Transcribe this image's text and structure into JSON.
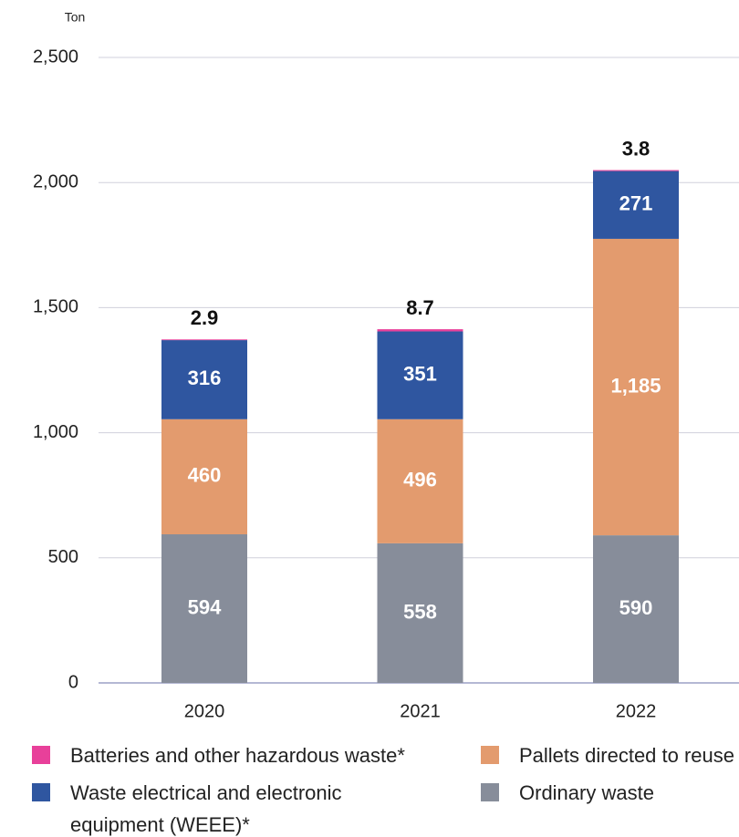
{
  "chart_data": {
    "type": "stacked_bar",
    "y_label": "Ton",
    "categories": [
      "2020",
      "2021",
      "2022"
    ],
    "series": [
      {
        "name": "Ordinary waste",
        "color": "#878d9a",
        "values": [
          594,
          558,
          590
        ]
      },
      {
        "name": "Pallets directed to reuse",
        "color": "#e39b6e",
        "values": [
          460,
          496,
          1185
        ],
        "value_labels": [
          "460",
          "496",
          "1,185"
        ]
      },
      {
        "name": "Waste electrical and electronic equipment (WEEE)*",
        "color": "#2f56a0",
        "values": [
          316,
          351,
          271
        ]
      },
      {
        "name": "Batteries and other hazardous waste*",
        "color": "#e8409a",
        "values": [
          2.9,
          8.7,
          3.8
        ]
      }
    ],
    "ylim": [
      0,
      2500
    ],
    "yticks": [
      0,
      500,
      {
        "value": 1000,
        "label": "1,000"
      },
      {
        "value": 1500,
        "label": "1,500"
      },
      {
        "value": 2000,
        "label": "2,000"
      },
      {
        "value": 2500,
        "label": "2,500"
      }
    ],
    "grid": true
  }
}
